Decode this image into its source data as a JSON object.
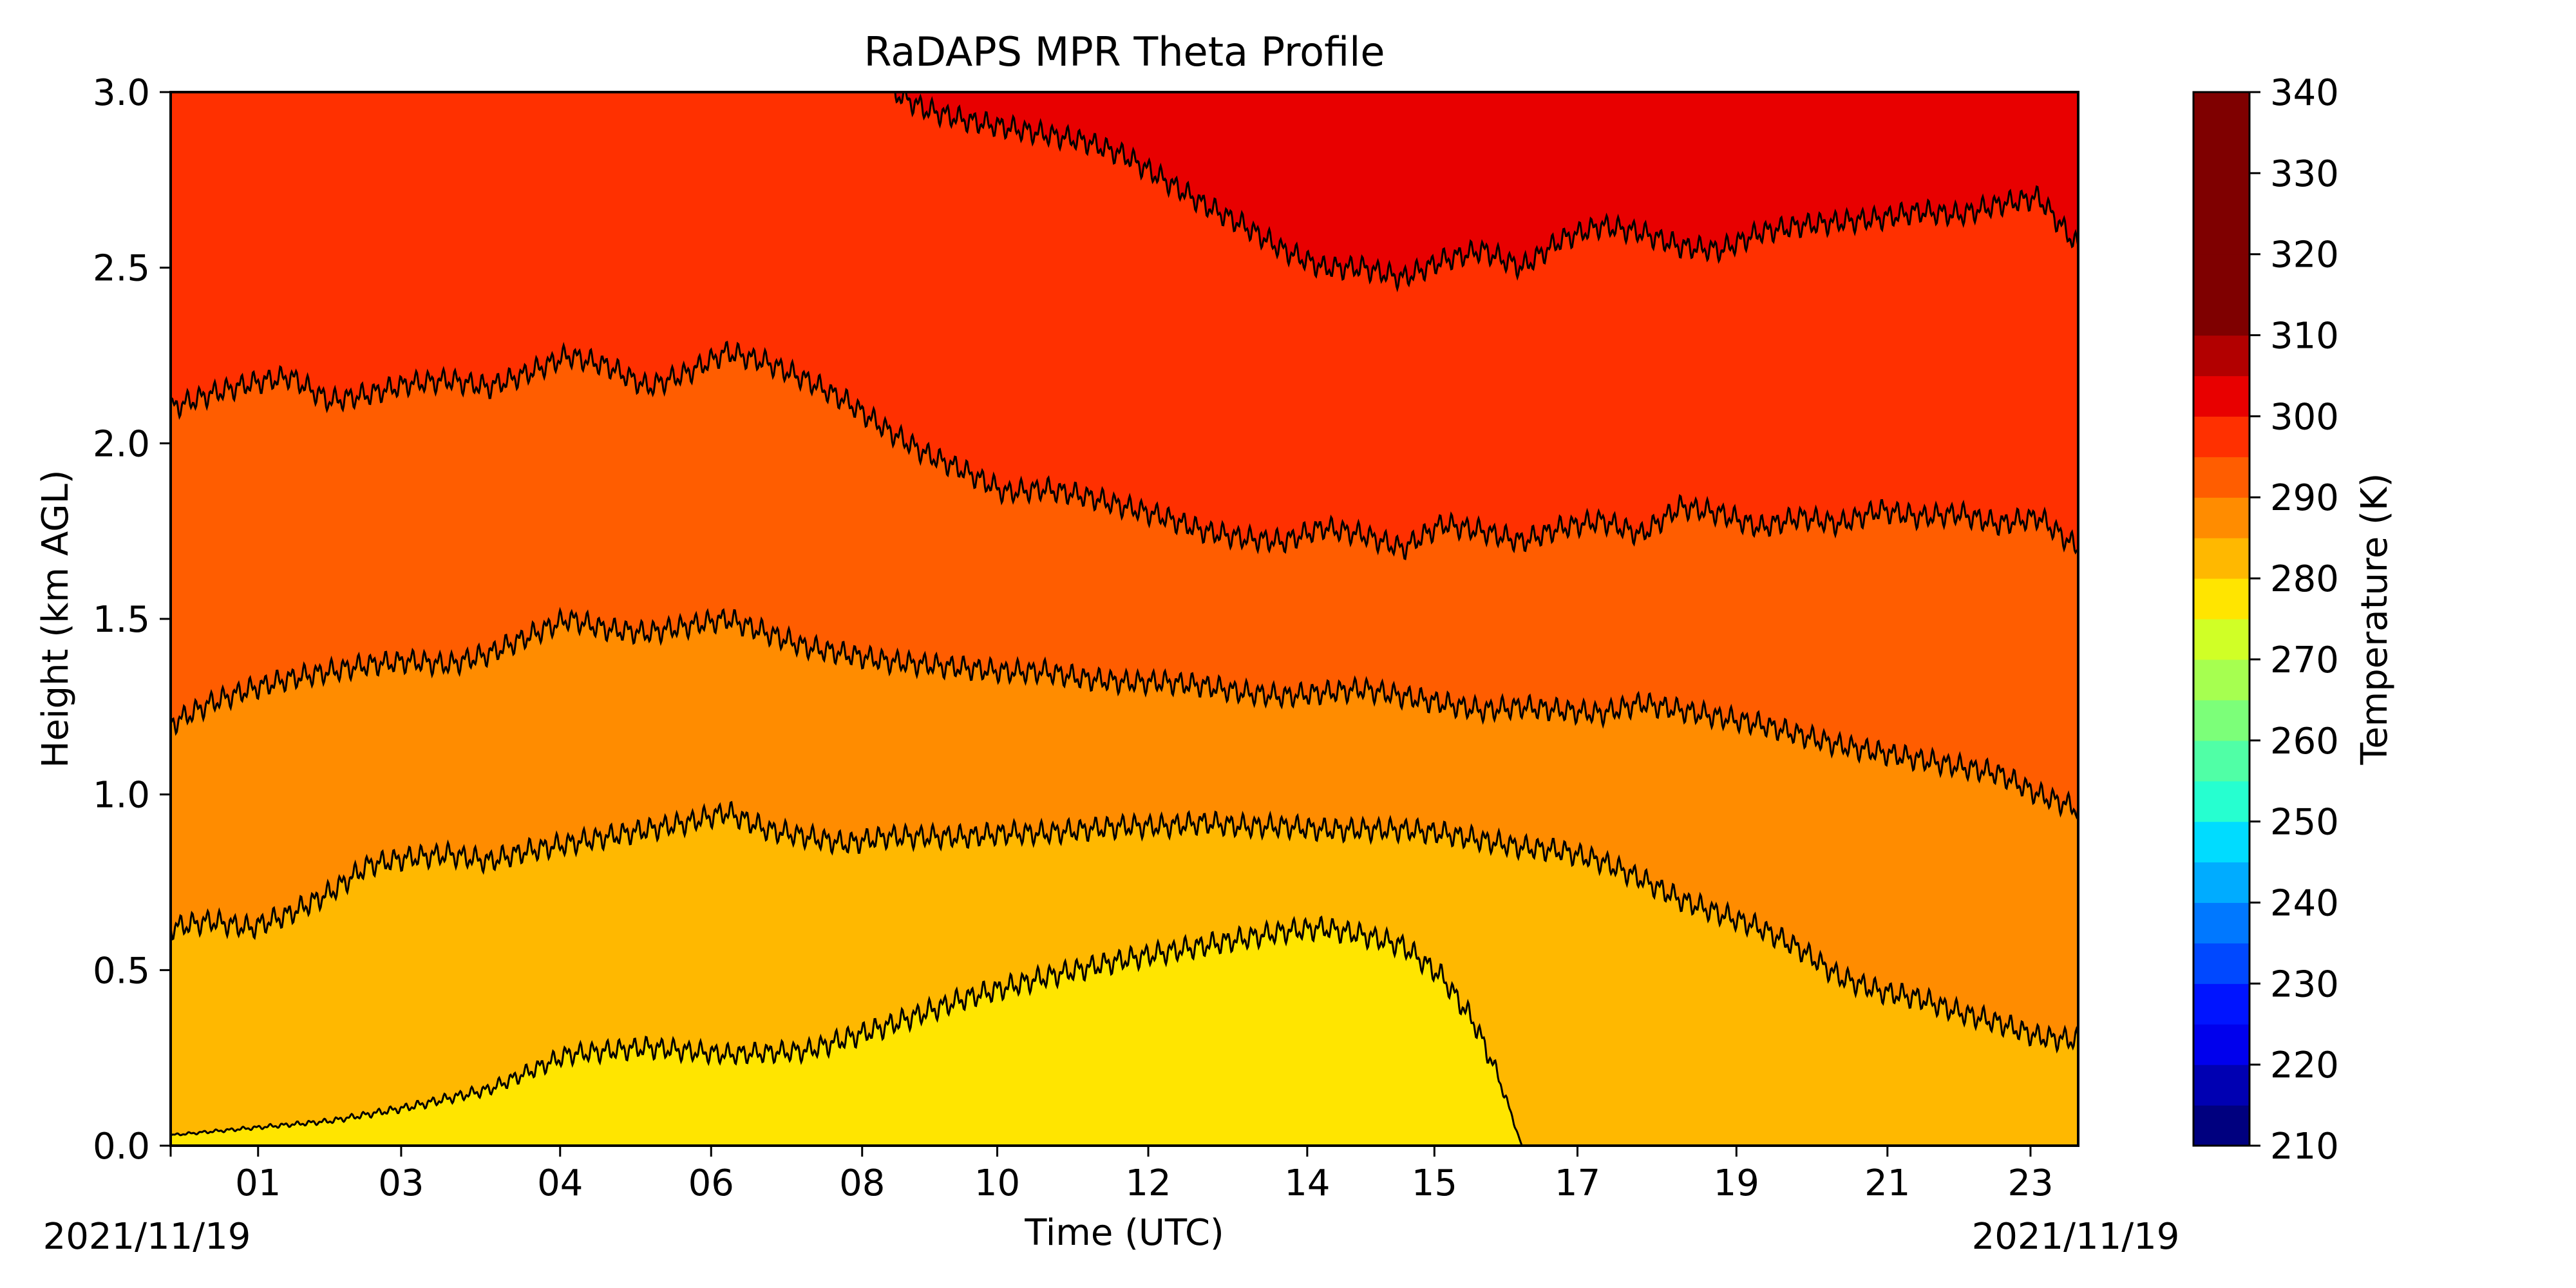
{
  "chart_data": {
    "type": "heatmap",
    "title": "RaDAPS MPR Theta Profile",
    "xlabel": "Time (UTC)",
    "ylabel": "Height (km AGL)",
    "x_start_label": "2021/11/19",
    "x_end_label": "2021/11/19",
    "xlim": [
      0,
      24
    ],
    "ylim": [
      0,
      3.0
    ],
    "x_ticks": [
      {
        "value": 1.1,
        "label": "01"
      },
      {
        "value": 2.9,
        "label": "03"
      },
      {
        "value": 4.9,
        "label": "04"
      },
      {
        "value": 6.8,
        "label": "06"
      },
      {
        "value": 8.7,
        "label": "08"
      },
      {
        "value": 10.4,
        "label": "10"
      },
      {
        "value": 12.3,
        "label": "12"
      },
      {
        "value": 14.3,
        "label": "14"
      },
      {
        "value": 15.9,
        "label": "15"
      },
      {
        "value": 17.7,
        "label": "17"
      },
      {
        "value": 19.7,
        "label": "19"
      },
      {
        "value": 21.6,
        "label": "21"
      },
      {
        "value": 23.4,
        "label": "23"
      }
    ],
    "y_ticks": [
      "0.0",
      "0.5",
      "1.0",
      "1.5",
      "2.0",
      "2.5",
      "3.0"
    ],
    "colorbar": {
      "label": "Temperature (K)",
      "min": 210,
      "max": 340,
      "step": 5,
      "tick_labels": [
        "210",
        "220",
        "230",
        "240",
        "250",
        "260",
        "270",
        "280",
        "290",
        "300",
        "310",
        "320",
        "330",
        "340"
      ],
      "colors": [
        "#00007f",
        "#0000b2",
        "#0000ed",
        "#0014ff",
        "#0048ff",
        "#0078ff",
        "#00acff",
        "#00dcff",
        "#26ffd0",
        "#50ffa6",
        "#7cff79",
        "#a6ff50",
        "#d0ff26",
        "#ffe500",
        "#ffb800",
        "#ff8c00",
        "#ff5d00",
        "#ff3000",
        "#e80000",
        "#b20000",
        "#7f0000",
        "#7f0000",
        "#7f0000",
        "#7f0000",
        "#7f0000",
        "#7f0000"
      ]
    },
    "series": [
      {
        "value": "290",
        "x": [
          0,
          0.5,
          1,
          1.5,
          2,
          2.5,
          3,
          3.5,
          4,
          4.5,
          5,
          5.5,
          6,
          6.5,
          7,
          7.5,
          8,
          8.5,
          9,
          9.5,
          10,
          10.5,
          11,
          11.5,
          12,
          12.5,
          13,
          13.5,
          14,
          14.5,
          15,
          15.5,
          16,
          16.5,
          17,
          17.5,
          18,
          18.5,
          19,
          19.5,
          20,
          20.5,
          21,
          21.5,
          22,
          22.5,
          23,
          23.5,
          24
        ],
        "y": [
          2.1,
          2.14,
          2.17,
          2.19,
          2.12,
          2.14,
          2.17,
          2.18,
          2.16,
          2.2,
          2.25,
          2.22,
          2.16,
          2.2,
          2.26,
          2.23,
          2.18,
          2.12,
          2.04,
          1.97,
          1.92,
          1.86,
          1.87,
          1.85,
          1.82,
          1.79,
          1.75,
          1.73,
          1.72,
          1.76,
          1.74,
          1.7,
          1.77,
          1.75,
          1.72,
          1.76,
          1.78,
          1.74,
          1.82,
          1.8,
          1.76,
          1.79,
          1.77,
          1.81,
          1.79,
          1.8,
          1.77,
          1.79,
          1.7
        ]
      },
      {
        "value": "285",
        "x": [
          0,
          0.5,
          1,
          1.5,
          2,
          2.5,
          3,
          3.5,
          4,
          4.5,
          5,
          5.5,
          6,
          6.5,
          7,
          7.5,
          8,
          8.5,
          9,
          9.5,
          10,
          10.5,
          11,
          11.5,
          12,
          12.5,
          13,
          13.5,
          14,
          14.5,
          15,
          15.5,
          16,
          16.5,
          17,
          17.5,
          18,
          18.5,
          19,
          19.5,
          20,
          20.5,
          21,
          21.5,
          22,
          22.5,
          23,
          23.5,
          24
        ],
        "y": [
          1.2,
          1.26,
          1.3,
          1.33,
          1.35,
          1.37,
          1.38,
          1.37,
          1.4,
          1.45,
          1.5,
          1.47,
          1.46,
          1.48,
          1.5,
          1.46,
          1.42,
          1.4,
          1.38,
          1.37,
          1.36,
          1.35,
          1.35,
          1.33,
          1.32,
          1.32,
          1.31,
          1.29,
          1.28,
          1.29,
          1.3,
          1.28,
          1.26,
          1.24,
          1.25,
          1.24,
          1.23,
          1.26,
          1.24,
          1.22,
          1.2,
          1.17,
          1.14,
          1.12,
          1.1,
          1.08,
          1.06,
          1.0,
          0.96
        ]
      },
      {
        "value": "280",
        "x": [
          0,
          0.5,
          1,
          1.5,
          2,
          2.5,
          3,
          3.5,
          4,
          4.5,
          5,
          5.5,
          6,
          6.5,
          7,
          7.5,
          8,
          8.5,
          9,
          9.5,
          10,
          10.5,
          11,
          11.5,
          12,
          12.5,
          13,
          13.5,
          14,
          14.5,
          15,
          15.5,
          16,
          16.5,
          17,
          17.5,
          18,
          18.5,
          19,
          19.5,
          20,
          20.5,
          21,
          21.5,
          22,
          22.5,
          23,
          23.5,
          24
        ],
        "y": [
          0.62,
          0.64,
          0.62,
          0.66,
          0.72,
          0.8,
          0.82,
          0.83,
          0.81,
          0.84,
          0.86,
          0.88,
          0.9,
          0.92,
          0.95,
          0.9,
          0.88,
          0.86,
          0.88,
          0.88,
          0.88,
          0.89,
          0.89,
          0.9,
          0.91,
          0.91,
          0.92,
          0.91,
          0.91,
          0.9,
          0.9,
          0.9,
          0.89,
          0.87,
          0.85,
          0.84,
          0.81,
          0.76,
          0.7,
          0.66,
          0.62,
          0.56,
          0.48,
          0.44,
          0.42,
          0.38,
          0.35,
          0.31,
          0.3
        ]
      },
      {
        "value": "275",
        "x": [
          0,
          1,
          2,
          3,
          4,
          5,
          6,
          7,
          8,
          9,
          10,
          11,
          12,
          13,
          14,
          14.5,
          15,
          15.5,
          16,
          16.4,
          16.7,
          17.0
        ],
        "y": [
          0.03,
          0.05,
          0.07,
          0.11,
          0.16,
          0.26,
          0.28,
          0.26,
          0.27,
          0.34,
          0.42,
          0.48,
          0.53,
          0.57,
          0.61,
          0.62,
          0.6,
          0.57,
          0.48,
          0.35,
          0.2,
          0.0
        ]
      },
      {
        "value": "300",
        "x": [
          9.1,
          9.5,
          10,
          10.5,
          11,
          11.5,
          12,
          12.5,
          13,
          13.5,
          14,
          14.5,
          15,
          15.5,
          16,
          16.5,
          17,
          17.5,
          18,
          18.5,
          19,
          19.5,
          20,
          20.5,
          21,
          21.5,
          22,
          22.5,
          23,
          23.5,
          24
        ],
        "y": [
          3.0,
          2.95,
          2.92,
          2.9,
          2.88,
          2.86,
          2.82,
          2.75,
          2.68,
          2.62,
          2.55,
          2.5,
          2.5,
          2.47,
          2.52,
          2.55,
          2.5,
          2.58,
          2.62,
          2.6,
          2.56,
          2.55,
          2.6,
          2.62,
          2.63,
          2.64,
          2.66,
          2.65,
          2.68,
          2.7,
          2.56
        ]
      }
    ]
  }
}
